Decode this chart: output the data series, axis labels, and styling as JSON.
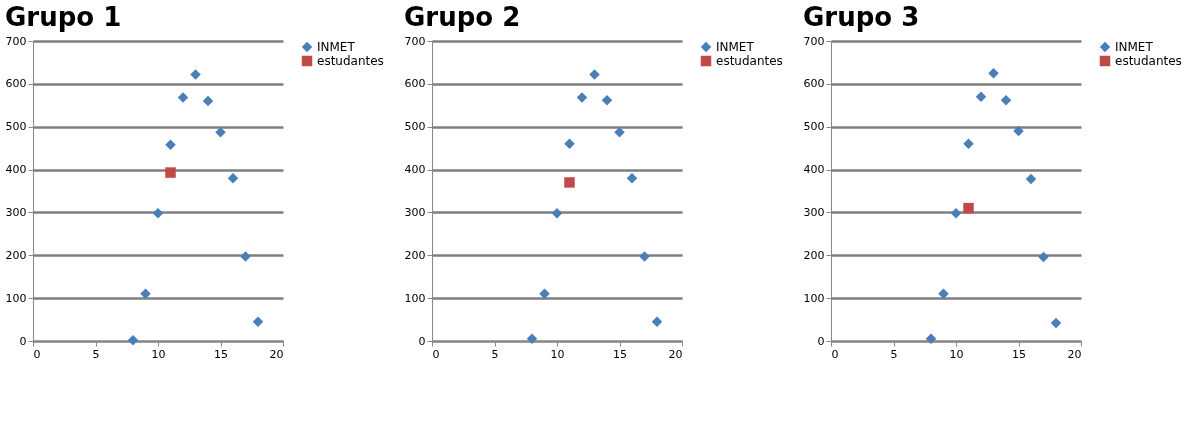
{
  "chart_data": [
    {
      "type": "scatter",
      "title": "Grupo 1",
      "xlim": [
        0,
        20
      ],
      "xticks": [
        0,
        5,
        10,
        15,
        20
      ],
      "ylim": [
        0,
        700
      ],
      "yticks": [
        0,
        100,
        200,
        300,
        400,
        500,
        600,
        700
      ],
      "grid": "y",
      "legend": "right",
      "series": [
        {
          "name": "INMET",
          "color": "#4a7ebb",
          "marker": "diamond",
          "x": [
            8,
            9,
            10,
            11,
            12,
            13,
            14,
            15,
            16,
            17,
            18
          ],
          "values": [
            2,
            110,
            298,
            458,
            568,
            622,
            560,
            487,
            380,
            197,
            45
          ]
        },
        {
          "name": "estudantes",
          "color": "#be4b48",
          "marker": "square",
          "x": [
            11
          ],
          "values": [
            393
          ]
        }
      ]
    },
    {
      "type": "scatter",
      "title": "Grupo 2",
      "xlim": [
        0,
        20
      ],
      "xticks": [
        0,
        5,
        10,
        15,
        20
      ],
      "ylim": [
        0,
        700
      ],
      "yticks": [
        0,
        100,
        200,
        300,
        400,
        500,
        600,
        700
      ],
      "grid": "y",
      "legend": "right",
      "series": [
        {
          "name": "INMET",
          "color": "#4a7ebb",
          "marker": "diamond",
          "x": [
            8,
            9,
            10,
            11,
            12,
            13,
            14,
            15,
            16,
            17,
            18
          ],
          "values": [
            5,
            110,
            298,
            460,
            568,
            622,
            562,
            487,
            380,
            197,
            45
          ]
        },
        {
          "name": "estudantes",
          "color": "#be4b48",
          "marker": "square",
          "x": [
            11
          ],
          "values": [
            370
          ]
        }
      ]
    },
    {
      "type": "scatter",
      "title": "Grupo 3",
      "xlim": [
        0,
        20
      ],
      "xticks": [
        0,
        5,
        10,
        15,
        20
      ],
      "ylim": [
        0,
        700
      ],
      "yticks": [
        0,
        100,
        200,
        300,
        400,
        500,
        600,
        700
      ],
      "grid": "y",
      "legend": "right",
      "series": [
        {
          "name": "INMET",
          "color": "#4a7ebb",
          "marker": "diamond",
          "x": [
            8,
            9,
            10,
            11,
            12,
            13,
            14,
            15,
            16,
            17,
            18
          ],
          "values": [
            5,
            110,
            298,
            460,
            570,
            625,
            562,
            490,
            378,
            196,
            42
          ]
        },
        {
          "name": "estudantes",
          "color": "#be4b48",
          "marker": "square",
          "x": [
            11
          ],
          "values": [
            310
          ]
        }
      ]
    }
  ]
}
